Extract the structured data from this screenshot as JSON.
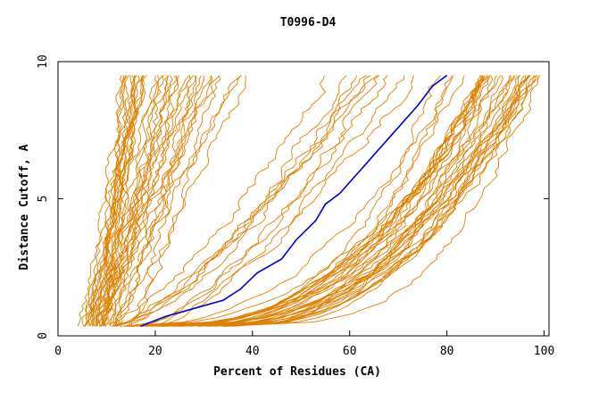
{
  "chart_data": {
    "type": "line",
    "title": "T0996-D4",
    "xlabel": "Percent of Residues (CA)",
    "ylabel": "Distance Cutoff, A",
    "xlim": [
      0,
      101
    ],
    "ylim": [
      0,
      10
    ],
    "xticks": [
      0,
      20,
      40,
      60,
      80,
      100
    ],
    "yticks": [
      0,
      5,
      10
    ],
    "grid": false,
    "colors": {
      "background_curves": "#e08000",
      "highlight_curve": "#0000cc",
      "axes": "#000000"
    },
    "highlight": {
      "x": [
        17,
        22,
        28,
        34,
        37.5,
        41,
        46,
        49,
        53,
        55,
        58,
        61,
        63,
        66,
        70,
        74,
        77,
        80
      ],
      "y": [
        0.35,
        0.7,
        1.0,
        1.3,
        1.7,
        2.3,
        2.8,
        3.5,
        4.2,
        4.8,
        5.2,
        5.8,
        6.2,
        6.8,
        7.6,
        8.4,
        9.1,
        9.5
      ]
    },
    "background_groups": [
      {
        "n": 16,
        "mode": "linear",
        "xs": [
          3.5,
          10
        ],
        "xe": [
          13,
          19
        ],
        "jit": 1.2
      },
      {
        "n": 16,
        "mode": "linear",
        "xs": [
          5,
          12
        ],
        "xe": [
          20,
          31
        ],
        "jit": 1.4
      },
      {
        "n": 8,
        "mode": "linear",
        "xs": [
          8,
          16
        ],
        "xe": [
          28,
          43
        ],
        "jit": 1.5
      },
      {
        "n": 5,
        "mode": "mid",
        "xs": [
          7,
          14
        ],
        "xe": [
          52,
          68
        ],
        "jit": 1.8
      },
      {
        "n": 5,
        "mode": "mid",
        "xs": [
          14,
          22
        ],
        "xe": [
          62,
          76
        ],
        "jit": 1.8
      },
      {
        "n": 4,
        "mode": "convex",
        "xs": [
          9,
          15
        ],
        "xe": [
          78,
          86
        ],
        "jit": 1.5
      },
      {
        "n": 34,
        "mode": "convex",
        "xs": [
          14,
          36
        ],
        "xe": [
          86,
          99
        ],
        "jit": 1.4
      }
    ]
  }
}
